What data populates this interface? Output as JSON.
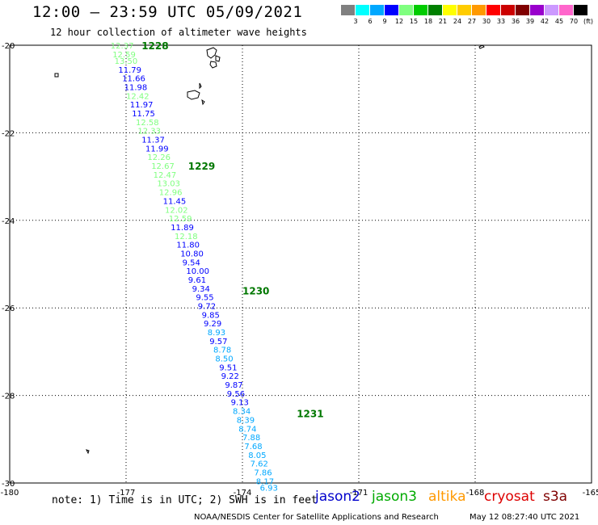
{
  "header": {
    "title": "12:00 — 23:59 UTC 05/09/2021",
    "subtitle": "12 hour collection of altimeter wave heights"
  },
  "colorbar": {
    "labels": [
      "3",
      "6",
      "9",
      "12",
      "15",
      "18",
      "21",
      "24",
      "27",
      "30",
      "33",
      "36",
      "39",
      "42",
      "45",
      "70"
    ],
    "unit": "(ft)",
    "colors": [
      "#808080",
      "#00ffff",
      "#00a8ff",
      "#0000ff",
      "#7fff7f",
      "#00cc00",
      "#008000",
      "#ffff00",
      "#ffcc00",
      "#ff9900",
      "#ff0000",
      "#cc0000",
      "#800000",
      "#9900cc",
      "#cc99ff",
      "#ff66cc",
      "#000000"
    ]
  },
  "footer": {
    "note": "note: 1) Time is in UTC; 2) SWH is in feet",
    "satellites": [
      {
        "name": "jason2",
        "color": "#0000cc"
      },
      {
        "name": "jason3",
        "color": "#00aa00"
      },
      {
        "name": "altika",
        "color": "#ff9900"
      },
      {
        "name": "cryosat",
        "color": "#dd0000"
      },
      {
        "name": "s3a",
        "color": "#800000"
      }
    ],
    "credit": "NOAA/NESDIS Center for Satellite Applications and Research",
    "timestamp": "May 12 08:27:40 UTC 2021"
  },
  "chart_data": {
    "type": "scatter",
    "title": "12:00 — 23:59 UTC 05/09/2021",
    "xlim": [
      -180,
      -165
    ],
    "ylim": [
      -30,
      -20
    ],
    "x_ticks": [
      "-180",
      "-177",
      "-174",
      "-171",
      "-168",
      "-165"
    ],
    "y_ticks": [
      "-20",
      "-22",
      "-24",
      "-26",
      "-28",
      "-30"
    ],
    "grid": "dotted",
    "colors": {
      "low": "#00a8ff",
      "mid": "#0000ff",
      "high": "#7fff7f",
      "time": "#007700"
    },
    "time_labels": [
      {
        "label": "1228",
        "lon": -176.6,
        "lat": -20.0
      },
      {
        "label": "1229",
        "lon": -175.4,
        "lat": -22.75
      },
      {
        "label": "1230",
        "lon": -174.0,
        "lat": -25.6
      },
      {
        "label": "1231",
        "lon": -172.6,
        "lat": -28.4
      }
    ],
    "swh": [
      {
        "v": "12.37",
        "lon": -177.4,
        "lat": -20.0,
        "c": "high"
      },
      {
        "v": "12.59",
        "lon": -177.35,
        "lat": -20.2,
        "c": "high"
      },
      {
        "v": "13.50",
        "lon": -177.3,
        "lat": -20.35,
        "c": "high"
      },
      {
        "v": "11.79",
        "lon": -177.2,
        "lat": -20.55,
        "c": "mid"
      },
      {
        "v": "11.66",
        "lon": -177.1,
        "lat": -20.75,
        "c": "mid"
      },
      {
        "v": "11.98",
        "lon": -177.05,
        "lat": -20.95,
        "c": "mid"
      },
      {
        "v": "12.42",
        "lon": -177.0,
        "lat": -21.15,
        "c": "high"
      },
      {
        "v": "11.97",
        "lon": -176.9,
        "lat": -21.35,
        "c": "mid"
      },
      {
        "v": "11.75",
        "lon": -176.85,
        "lat": -21.55,
        "c": "mid"
      },
      {
        "v": "12.58",
        "lon": -176.75,
        "lat": -21.75,
        "c": "high"
      },
      {
        "v": "12.33",
        "lon": -176.7,
        "lat": -21.95,
        "c": "high"
      },
      {
        "v": "11.37",
        "lon": -176.6,
        "lat": -22.15,
        "c": "mid"
      },
      {
        "v": "11.99",
        "lon": -176.5,
        "lat": -22.35,
        "c": "mid"
      },
      {
        "v": "12.26",
        "lon": -176.45,
        "lat": -22.55,
        "c": "high"
      },
      {
        "v": "12.67",
        "lon": -176.35,
        "lat": -22.75,
        "c": "high"
      },
      {
        "v": "12.47",
        "lon": -176.3,
        "lat": -22.95,
        "c": "high"
      },
      {
        "v": "13.03",
        "lon": -176.2,
        "lat": -23.15,
        "c": "high"
      },
      {
        "v": "12.96",
        "lon": -176.15,
        "lat": -23.35,
        "c": "high"
      },
      {
        "v": "11.45",
        "lon": -176.05,
        "lat": -23.55,
        "c": "mid"
      },
      {
        "v": "12.02",
        "lon": -176.0,
        "lat": -23.75,
        "c": "high"
      },
      {
        "v": "12.59",
        "lon": -175.9,
        "lat": -23.95,
        "c": "high"
      },
      {
        "v": "11.89",
        "lon": -175.85,
        "lat": -24.15,
        "c": "mid"
      },
      {
        "v": "12.18",
        "lon": -175.75,
        "lat": -24.35,
        "c": "high"
      },
      {
        "v": "11.80",
        "lon": -175.7,
        "lat": -24.55,
        "c": "mid"
      },
      {
        "v": "10.80",
        "lon": -175.6,
        "lat": -24.75,
        "c": "mid"
      },
      {
        "v": "9.54",
        "lon": -175.55,
        "lat": -24.95,
        "c": "mid"
      },
      {
        "v": "10.00",
        "lon": -175.45,
        "lat": -25.15,
        "c": "mid"
      },
      {
        "v": "9.61",
        "lon": -175.4,
        "lat": -25.35,
        "c": "mid"
      },
      {
        "v": "9.34",
        "lon": -175.3,
        "lat": -25.55,
        "c": "mid"
      },
      {
        "v": "9.55",
        "lon": -175.2,
        "lat": -25.75,
        "c": "mid"
      },
      {
        "v": "9.72",
        "lon": -175.15,
        "lat": -25.95,
        "c": "mid"
      },
      {
        "v": "9.85",
        "lon": -175.05,
        "lat": -26.15,
        "c": "mid"
      },
      {
        "v": "9.29",
        "lon": -175.0,
        "lat": -26.35,
        "c": "mid"
      },
      {
        "v": "8.93",
        "lon": -174.9,
        "lat": -26.55,
        "c": "low"
      },
      {
        "v": "9.57",
        "lon": -174.85,
        "lat": -26.75,
        "c": "mid"
      },
      {
        "v": "8.78",
        "lon": -174.75,
        "lat": -26.95,
        "c": "low"
      },
      {
        "v": "8.50",
        "lon": -174.7,
        "lat": -27.15,
        "c": "low"
      },
      {
        "v": "9.51",
        "lon": -174.6,
        "lat": -27.35,
        "c": "mid"
      },
      {
        "v": "9.22",
        "lon": -174.55,
        "lat": -27.55,
        "c": "mid"
      },
      {
        "v": "9.87",
        "lon": -174.45,
        "lat": -27.75,
        "c": "mid"
      },
      {
        "v": "9.56",
        "lon": -174.4,
        "lat": -27.95,
        "c": "mid"
      },
      {
        "v": "9.13",
        "lon": -174.3,
        "lat": -28.15,
        "c": "mid"
      },
      {
        "v": "8.34",
        "lon": -174.25,
        "lat": -28.35,
        "c": "low"
      },
      {
        "v": "8.39",
        "lon": -174.15,
        "lat": -28.55,
        "c": "low"
      },
      {
        "v": "8.74",
        "lon": -174.1,
        "lat": -28.75,
        "c": "low"
      },
      {
        "v": "7.88",
        "lon": -174.0,
        "lat": -28.95,
        "c": "low"
      },
      {
        "v": "7.68",
        "lon": -173.95,
        "lat": -29.15,
        "c": "low"
      },
      {
        "v": "8.05",
        "lon": -173.85,
        "lat": -29.35,
        "c": "low"
      },
      {
        "v": "7.62",
        "lon": -173.8,
        "lat": -29.55,
        "c": "low"
      },
      {
        "v": "7.86",
        "lon": -173.7,
        "lat": -29.75,
        "c": "low"
      },
      {
        "v": "8.17",
        "lon": -173.65,
        "lat": -29.95,
        "c": "low"
      },
      {
        "v": "6.93",
        "lon": -173.55,
        "lat": -30.1,
        "c": "low"
      }
    ]
  }
}
